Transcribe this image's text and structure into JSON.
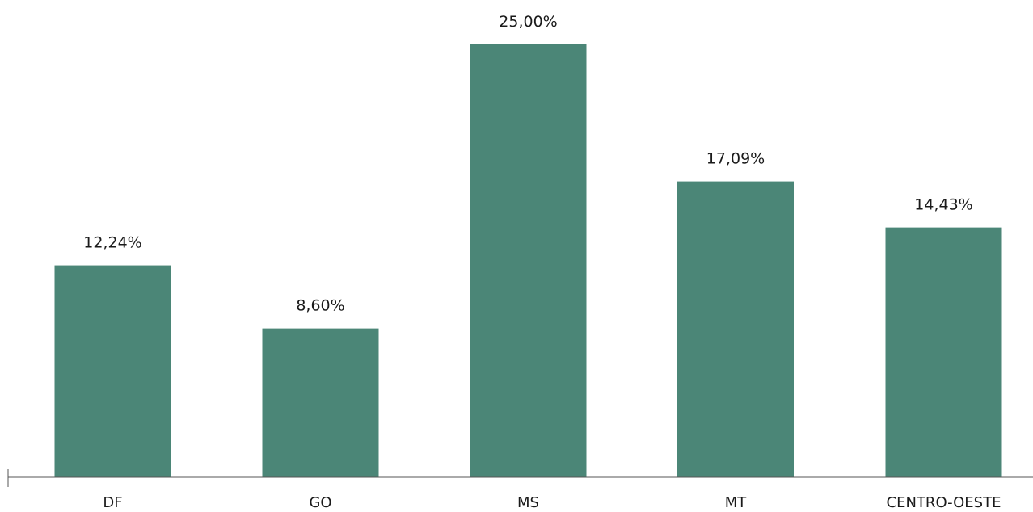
{
  "chart_data": {
    "type": "bar",
    "categories": [
      "DF",
      "GO",
      "MS",
      "MT",
      "CENTRO-OESTE"
    ],
    "values": [
      12.24,
      8.6,
      25.0,
      17.09,
      14.43
    ],
    "value_labels": [
      "12,24%",
      "8,60%",
      "25,00%",
      "17,09%",
      "14,43%"
    ],
    "ylim": [
      0,
      25
    ],
    "grid": false,
    "colors": {
      "bar": "#4b8677",
      "axis": "#555555",
      "text": "#1a1a1a"
    }
  }
}
